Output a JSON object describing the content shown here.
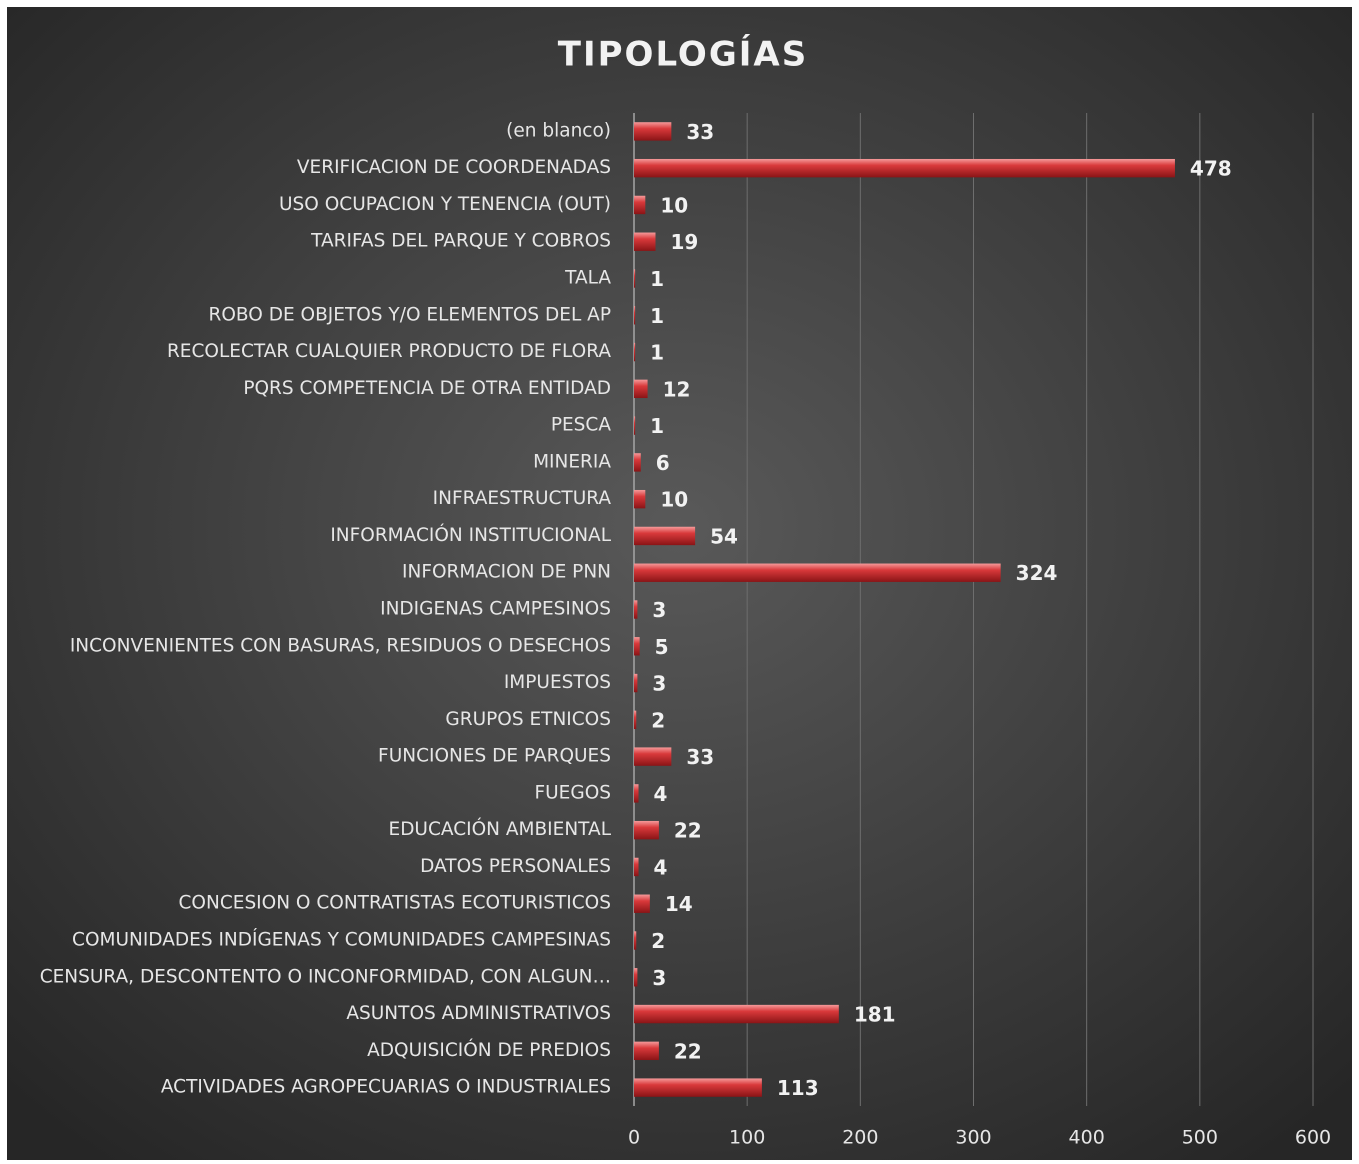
{
  "chart_data": {
    "type": "bar",
    "orientation": "horizontal",
    "title": "TIPOLOGÍAS",
    "categories": [
      "(en blanco)",
      "VERIFICACION DE COORDENADAS",
      "USO OCUPACION Y TENENCIA (OUT)",
      "TARIFAS DEL PARQUE Y COBROS",
      "TALA",
      "ROBO DE OBJETOS Y/O ELEMENTOS DEL AP",
      "RECOLECTAR CUALQUIER PRODUCTO DE FLORA",
      "PQRS COMPETENCIA DE OTRA ENTIDAD",
      "PESCA",
      "MINERIA",
      "INFRAESTRUCTURA",
      "INFORMACIÓN INSTITUCIONAL",
      "INFORMACION DE PNN",
      "INDIGENAS CAMPESINOS",
      "INCONVENIENTES CON BASURAS, RESIDUOS O DESECHOS",
      "IMPUESTOS",
      "GRUPOS ETNICOS",
      "FUNCIONES DE PARQUES",
      "FUEGOS",
      "EDUCACIÓN AMBIENTAL",
      "DATOS PERSONALES",
      "CONCESION O CONTRATISTAS ECOTURISTICOS",
      "COMUNIDADES INDÍGENAS Y COMUNIDADES CAMPESINAS",
      "CENSURA, DESCONTENTO O INCONFORMIDAD, CON ALGUN…",
      "ASUNTOS ADMINISTRATIVOS",
      "ADQUISICIÓN DE PREDIOS",
      "ACTIVIDADES AGROPECUARIAS O INDUSTRIALES"
    ],
    "values": [
      33,
      478,
      10,
      19,
      1,
      1,
      1,
      12,
      1,
      6,
      10,
      54,
      324,
      3,
      5,
      3,
      2,
      33,
      4,
      22,
      4,
      14,
      2,
      3,
      181,
      22,
      113
    ],
    "color": "#d9393b",
    "xlim": [
      0,
      600
    ],
    "xticks": [
      0,
      100,
      200,
      300,
      400,
      500,
      600
    ],
    "grid": true
  }
}
